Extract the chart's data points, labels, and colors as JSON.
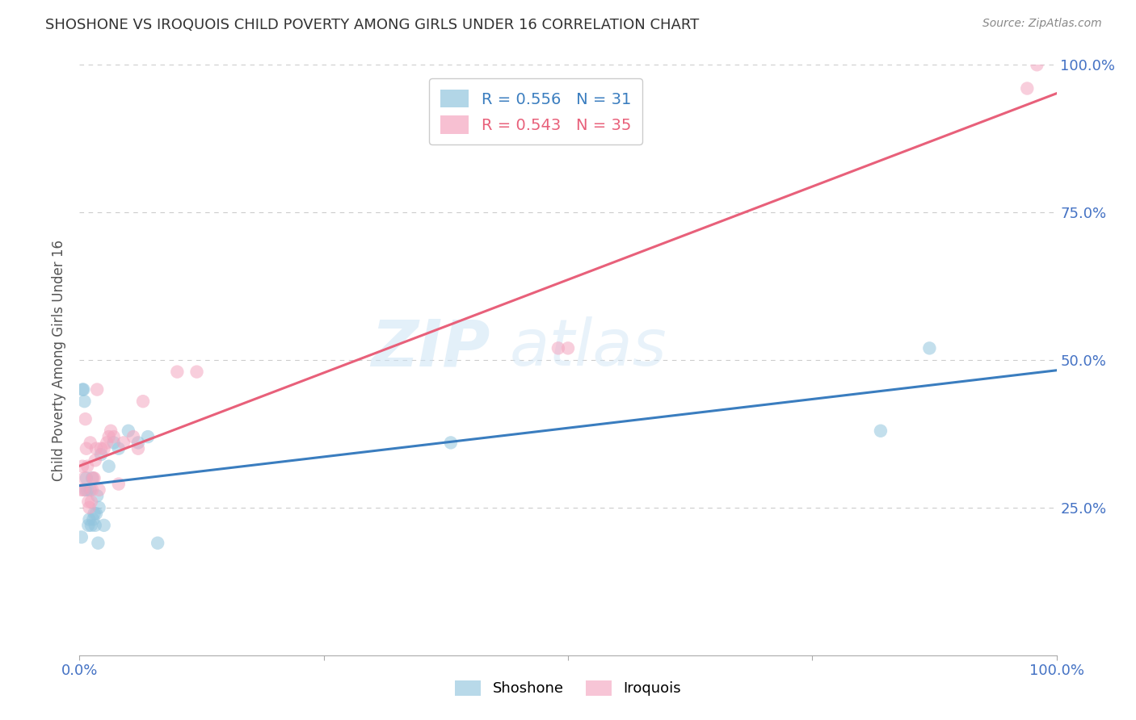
{
  "title": "SHOSHONE VS IROQUOIS CHILD POVERTY AMONG GIRLS UNDER 16 CORRELATION CHART",
  "source": "Source: ZipAtlas.com",
  "ylabel": "Child Poverty Among Girls Under 16",
  "shoshone_R": 0.556,
  "shoshone_N": 31,
  "iroquois_R": 0.543,
  "iroquois_N": 35,
  "shoshone_color": "#92c5de",
  "iroquois_color": "#f4a6c0",
  "shoshone_line_color": "#3a7dbf",
  "iroquois_line_color": "#e8607a",
  "shoshone_x": [
    0.002,
    0.003,
    0.004,
    0.005,
    0.006,
    0.007,
    0.008,
    0.009,
    0.01,
    0.011,
    0.012,
    0.013,
    0.014,
    0.015,
    0.016,
    0.017,
    0.018,
    0.019,
    0.02,
    0.022,
    0.025,
    0.03,
    0.035,
    0.04,
    0.05,
    0.06,
    0.07,
    0.08,
    0.38,
    0.82,
    0.87
  ],
  "shoshone_y": [
    0.2,
    0.45,
    0.45,
    0.43,
    0.28,
    0.3,
    0.28,
    0.22,
    0.23,
    0.28,
    0.22,
    0.3,
    0.23,
    0.24,
    0.22,
    0.24,
    0.27,
    0.19,
    0.25,
    0.34,
    0.22,
    0.32,
    0.36,
    0.35,
    0.38,
    0.36,
    0.37,
    0.19,
    0.36,
    0.38,
    0.52
  ],
  "iroquois_x": [
    0.002,
    0.003,
    0.004,
    0.005,
    0.006,
    0.007,
    0.008,
    0.009,
    0.01,
    0.011,
    0.012,
    0.013,
    0.014,
    0.015,
    0.016,
    0.017,
    0.018,
    0.02,
    0.022,
    0.025,
    0.028,
    0.03,
    0.032,
    0.035,
    0.04,
    0.045,
    0.055,
    0.06,
    0.065,
    0.1,
    0.12,
    0.49,
    0.5,
    0.97,
    0.98
  ],
  "iroquois_y": [
    0.28,
    0.32,
    0.28,
    0.3,
    0.4,
    0.35,
    0.32,
    0.26,
    0.25,
    0.36,
    0.26,
    0.28,
    0.3,
    0.3,
    0.33,
    0.35,
    0.45,
    0.28,
    0.35,
    0.35,
    0.36,
    0.37,
    0.38,
    0.37,
    0.29,
    0.36,
    0.37,
    0.35,
    0.43,
    0.48,
    0.48,
    0.52,
    0.52,
    0.96,
    1.0
  ],
  "xlim": [
    0.0,
    1.0
  ],
  "ylim": [
    0.0,
    1.0
  ],
  "xticks": [
    0.0,
    0.25,
    0.5,
    0.75,
    1.0
  ],
  "yticks": [
    0.0,
    0.25,
    0.5,
    0.75,
    1.0
  ],
  "xticklabels_show": [
    "0.0%",
    "",
    "",
    "",
    "100.0%"
  ],
  "yticklabels_right": [
    "",
    "25.0%",
    "50.0%",
    "75.0%",
    "100.0%"
  ],
  "background_color": "#ffffff",
  "grid_color": "#cccccc"
}
